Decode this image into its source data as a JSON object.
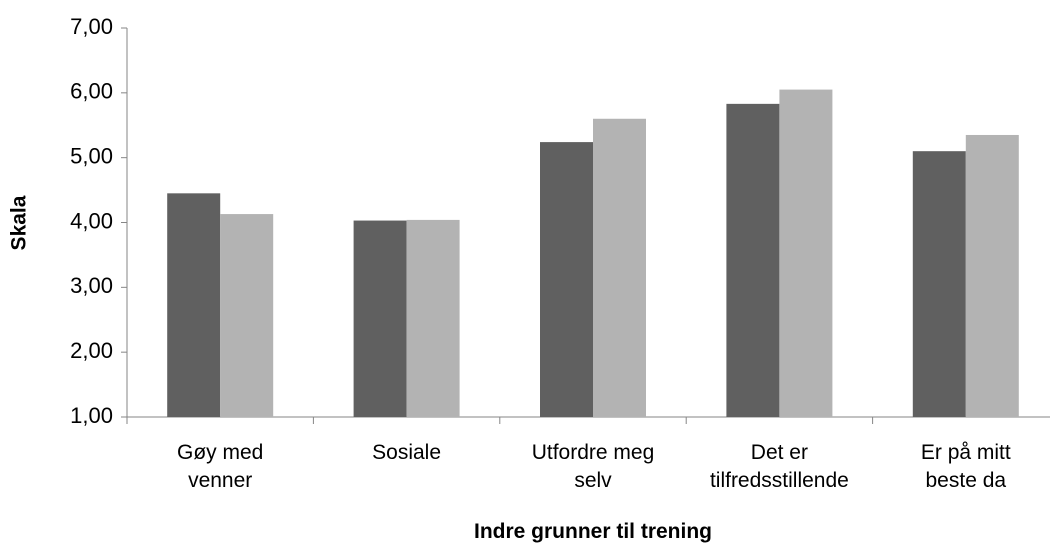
{
  "chart_data": {
    "type": "bar",
    "x_label": "Indre grunner til trening",
    "y_label": "Skala",
    "categories": [
      "Gøy med\nvenner",
      "Sosiale",
      "Utfordre meg\nselv",
      "Det er\ntilfredsstillende",
      "Er på mitt\nbeste da"
    ],
    "series": [
      {
        "color": "#606060",
        "values": [
          4.45,
          4.03,
          5.24,
          5.83,
          5.1
        ]
      },
      {
        "color": "#b3b3b3",
        "values": [
          4.13,
          4.04,
          5.6,
          6.05,
          5.35
        ]
      }
    ],
    "ylim": [
      1,
      7
    ],
    "yticks": [
      {
        "value": 1,
        "label": "1,00"
      },
      {
        "value": 2,
        "label": "2,00"
      },
      {
        "value": 3,
        "label": "3,00"
      },
      {
        "value": 4,
        "label": "4,00"
      },
      {
        "value": 5,
        "label": "5,00"
      },
      {
        "value": 6,
        "label": "6,00"
      },
      {
        "value": 7,
        "label": "7,00"
      }
    ],
    "grid": false
  }
}
